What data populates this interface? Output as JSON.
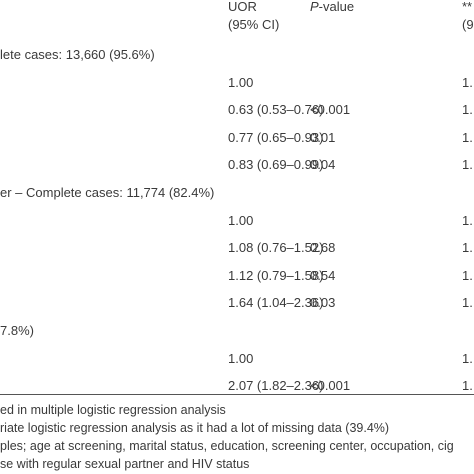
{
  "header": {
    "uor": "UOR",
    "ci": "(95% CI)",
    "p_italic": "P",
    "p_rest": "-value",
    "right_top": "**",
    "right_bottom": "(9"
  },
  "rows": [
    {
      "label": "lete cases: 13,660 (95.6%)"
    },
    {
      "uor": "1.00",
      "right": "1."
    },
    {
      "uor": "0.63 (0.53–0.76)",
      "p": "<0.001",
      "right": "1."
    },
    {
      "uor": "0.77 (0.65–0.93)",
      "p": "0.01",
      "right": "1."
    },
    {
      "uor": "0.83 (0.69–0.99)",
      "p": "0.04",
      "right": "1."
    },
    {
      "label": "er – Complete cases: 11,774 (82.4%)"
    },
    {
      "uor": "1.00",
      "right": "1."
    },
    {
      "uor": "1.08 (0.76–1.52)",
      "p": "0.68",
      "right": "1."
    },
    {
      "uor": "1.12 (0.79–1.58)",
      "p": "0.54",
      "right": "1."
    },
    {
      "uor": "1.64 (1.04–2.36)",
      "p": "0.03",
      "right": "1."
    },
    {
      "label": "7.8%)"
    },
    {
      "uor": "1.00",
      "right": "1."
    },
    {
      "uor": "2.07 (1.82–2.36)",
      "p": "<0.001",
      "right": "1."
    }
  ],
  "footnotes": [
    "ed in multiple logistic regression analysis",
    "riate logistic regression analysis as it had a lot of missing data (39.4%)",
    "ples; age at screening, marital status, education, screening center, occupation, cig",
    "se with regular sexual partner and HIV status"
  ]
}
